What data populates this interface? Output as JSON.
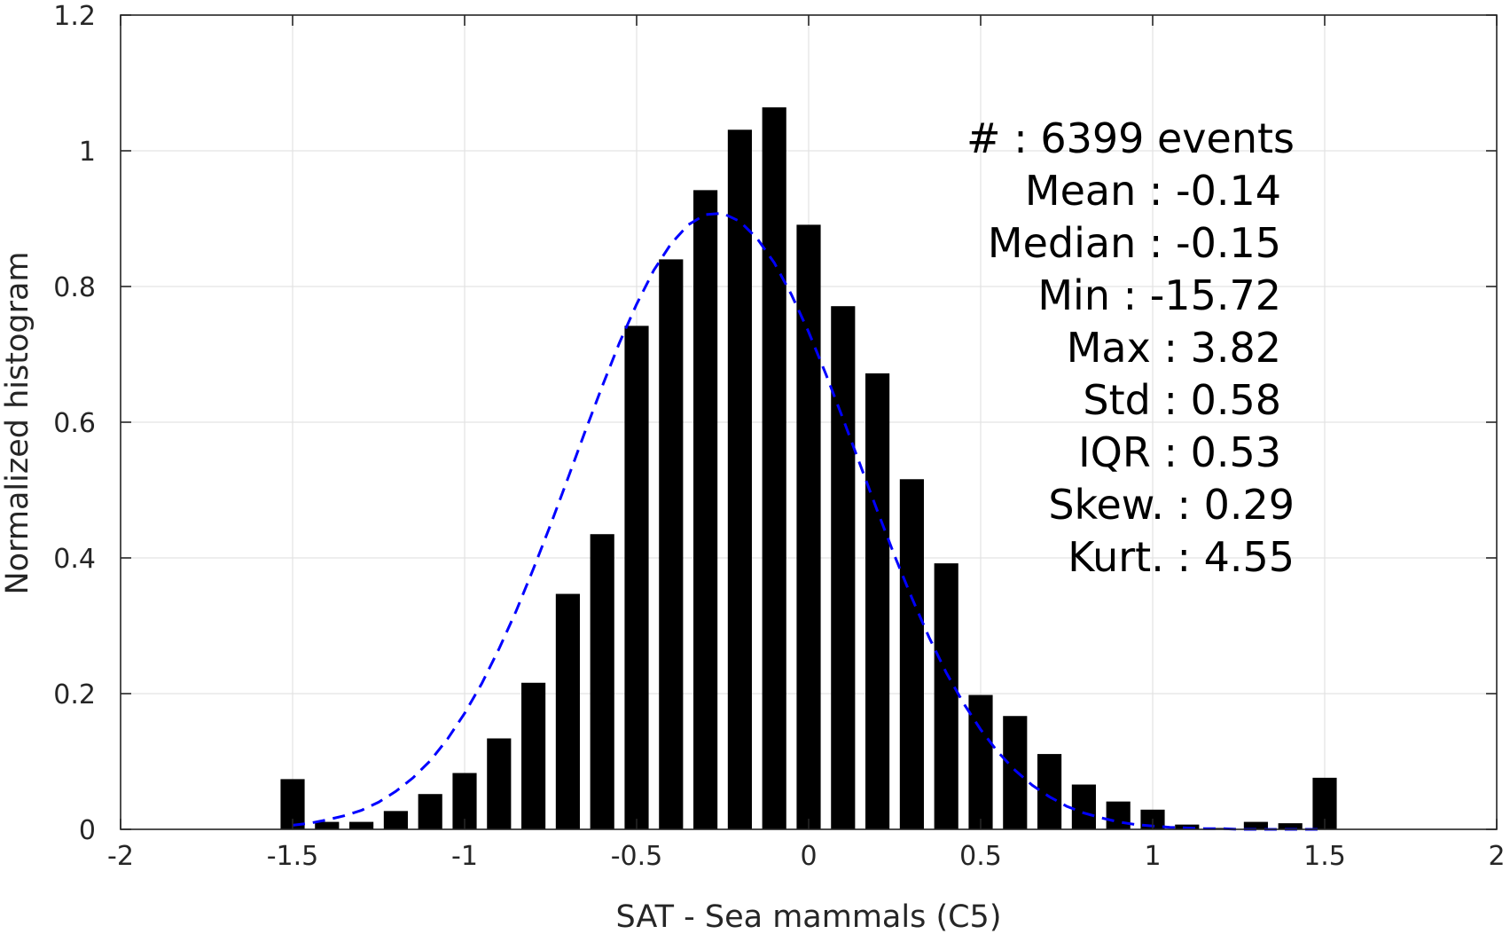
{
  "chart_data": {
    "type": "bar",
    "xlabel": "SAT - Sea mammals (C5)",
    "ylabel": "Normalized histogram",
    "xlim": [
      -2,
      2
    ],
    "ylim": [
      0,
      1.2
    ],
    "grid": true,
    "x_ticks": [
      "-2",
      "-1.5",
      "-1",
      "-0.5",
      "0",
      "0.5",
      "1",
      "1.5",
      "2"
    ],
    "y_ticks": [
      "0",
      "0.2",
      "0.4",
      "0.6",
      "0.8",
      "1",
      "1.2"
    ],
    "bar_color": "#000000",
    "bin_centers": [
      -1.5,
      -1.4,
      -1.3,
      -1.2,
      -1.1,
      -1.0,
      -0.9,
      -0.8,
      -0.7,
      -0.6,
      -0.5,
      -0.4,
      -0.3,
      -0.2,
      -0.1,
      0.0,
      0.1,
      0.2,
      0.3,
      0.4,
      0.5,
      0.6,
      0.7,
      0.8,
      0.9,
      1.0,
      1.1,
      1.2,
      1.3,
      1.4,
      1.5
    ],
    "values": [
      0.074,
      0.011,
      0.011,
      0.027,
      0.052,
      0.083,
      0.134,
      0.216,
      0.347,
      0.435,
      0.742,
      0.84,
      0.942,
      1.031,
      1.064,
      0.891,
      0.771,
      0.672,
      0.516,
      0.392,
      0.198,
      0.167,
      0.111,
      0.066,
      0.041,
      0.029,
      0.007,
      0.002,
      0.011,
      0.009,
      0.076
    ],
    "fit_curve": {
      "style": "dashed",
      "color": "#0000ff",
      "x": [
        -1.5,
        -1.45,
        -1.4,
        -1.35,
        -1.3,
        -1.25,
        -1.2,
        -1.15,
        -1.1,
        -1.05,
        -1.0,
        -0.95,
        -0.9,
        -0.85,
        -0.8,
        -0.75,
        -0.7,
        -0.65,
        -0.6,
        -0.55,
        -0.5,
        -0.45,
        -0.4,
        -0.35,
        -0.3,
        -0.25,
        -0.2,
        -0.15,
        -0.1,
        -0.05,
        0.0,
        0.05,
        0.1,
        0.15,
        0.2,
        0.25,
        0.3,
        0.35,
        0.4,
        0.45,
        0.5,
        0.55,
        0.6,
        0.65,
        0.7,
        0.75,
        0.8,
        0.85,
        0.9,
        0.95,
        1.0,
        1.05,
        1.1,
        1.15,
        1.2,
        1.25,
        1.3,
        1.35,
        1.4,
        1.45,
        1.5
      ],
      "y": [
        0.006,
        0.009,
        0.014,
        0.02,
        0.028,
        0.04,
        0.056,
        0.076,
        0.101,
        0.133,
        0.171,
        0.215,
        0.266,
        0.322,
        0.384,
        0.449,
        0.517,
        0.586,
        0.653,
        0.717,
        0.774,
        0.824,
        0.863,
        0.891,
        0.906,
        0.908,
        0.896,
        0.871,
        0.835,
        0.788,
        0.733,
        0.671,
        0.605,
        0.537,
        0.469,
        0.403,
        0.341,
        0.283,
        0.231,
        0.186,
        0.147,
        0.114,
        0.087,
        0.065,
        0.048,
        0.034,
        0.024,
        0.017,
        0.011,
        0.007,
        0.005,
        0.003,
        0.002,
        0.001,
        0.001,
        0.0,
        0.0,
        0.0,
        0.0,
        0.0,
        0.0
      ]
    },
    "annotations": [
      "#  : 6399 events",
      "Mean : -0.14",
      "Median : -0.15",
      "Min : -15.72",
      "Max : 3.82",
      "Std : 0.58",
      "IQR : 0.53",
      "Skew. : 0.29",
      "Kurt. : 4.55"
    ]
  }
}
